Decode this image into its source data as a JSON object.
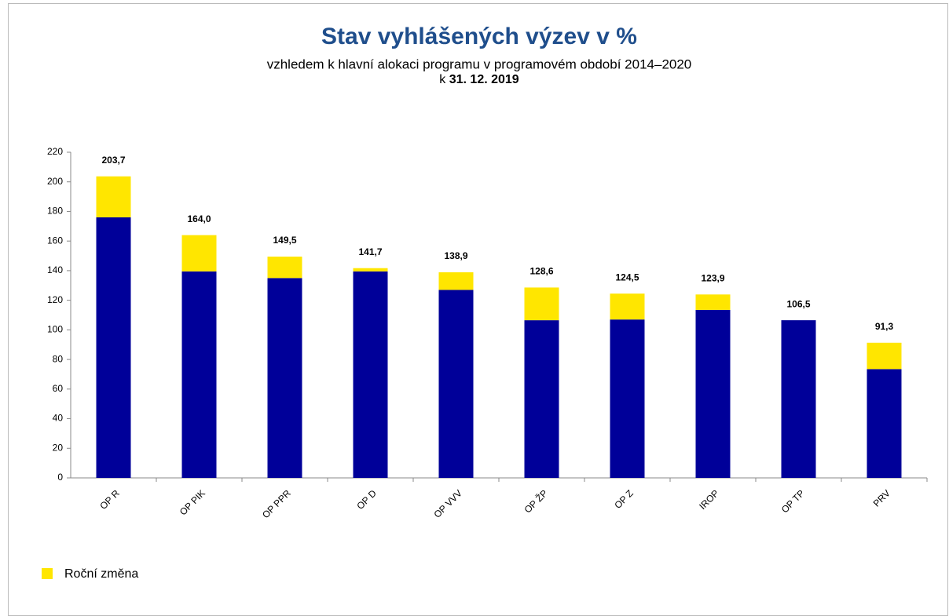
{
  "chart_data": {
    "type": "stacked_bar",
    "title": "Stav vyhlášených výzev v %",
    "subtitle": "vzhledem  k hlavní  alokaci programu v programovém období 2014–2020",
    "date_line": {
      "prefix": "k",
      "date": "31. 12. 2019"
    },
    "categories": [
      "OP R",
      "OP PIK",
      "OP PPR",
      "OP D",
      "OP VVV",
      "OP ŽP",
      "OP Z",
      "IROP",
      "OP TP",
      "PRV"
    ],
    "series": [
      {
        "color": "#000099",
        "values": [
          176,
          139.5,
          135,
          139.5,
          127,
          106.5,
          107,
          113.5,
          106.5,
          73.5
        ]
      },
      {
        "name": "Roční změna",
        "color": "#ffe600",
        "values": [
          27.7,
          24.5,
          14.5,
          2.2,
          11.9,
          22.1,
          17.5,
          10.4,
          0,
          17.8
        ]
      }
    ],
    "totals": [
      203.7,
      164.0,
      149.5,
      141.7,
      138.9,
      128.6,
      124.5,
      123.9,
      106.5,
      91.3
    ],
    "total_labels": [
      "203,7",
      "164,0",
      "149,5",
      "141,7",
      "138,9",
      "128,6",
      "124,5",
      "123,9",
      "106,5",
      "91,3"
    ],
    "ylim": [
      0,
      220
    ],
    "yticks": [
      0,
      20,
      40,
      60,
      80,
      100,
      120,
      140,
      160,
      180,
      200,
      220
    ],
    "grid": false,
    "legend": "bottom-left"
  }
}
